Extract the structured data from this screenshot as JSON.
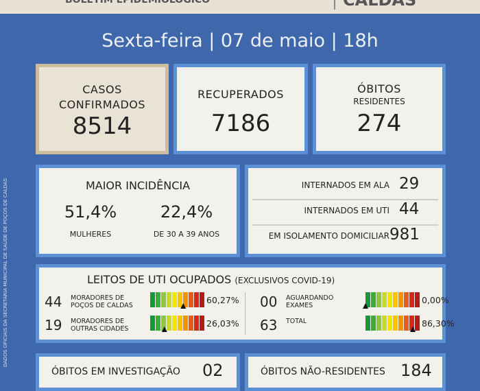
{
  "header": {
    "subtitle": "BOLETIM EPIDEMIOLÓGICO",
    "brand": "CALDAS"
  },
  "date_line": "Sexta-feira | 07 de maio | 18h",
  "cards": [
    {
      "label": "CASOS CONFIRMADOS",
      "value": "8514"
    },
    {
      "label": "RECUPERADOS",
      "value": "7186"
    },
    {
      "label": "ÓBITOS",
      "sublabel": "RESIDENTES",
      "value": "274"
    }
  ],
  "incidence": {
    "title": "MAIOR INCIDÊNCIA",
    "items": [
      {
        "value": "51,4%",
        "label": "MULHERES"
      },
      {
        "value": "22,4%",
        "label": "DE 30 A 39 ANOS"
      }
    ]
  },
  "status": [
    {
      "label": "INTERNADOS EM ALA",
      "value": "29"
    },
    {
      "label": "INTERNADOS EM UTI",
      "value": "44"
    },
    {
      "label": "EM ISOLAMENTO DOMICILIAR",
      "value": "981"
    }
  ],
  "icu": {
    "title": "LEITOS DE UTI OCUPADOS",
    "note": "(EXCLUSIVOS COVID-19)",
    "gauge_lim": [
      0,
      100
    ],
    "rows": [
      {
        "count": "44",
        "label": "MORADORES DE POÇOS DE CALDAS",
        "percent": {
          "value": 60.27,
          "label": "60,27%"
        }
      },
      {
        "count": "19",
        "label": "MORADORES DE OUTRAS CIDADES",
        "percent": {
          "value": 26.03,
          "label": "26,03%"
        }
      },
      {
        "count": "00",
        "label": "AGUARDANDO EXAMES",
        "percent": {
          "value": 0,
          "label": "0,00%"
        }
      },
      {
        "count": "63",
        "label": "TOTAL",
        "percent": {
          "value": 86.3,
          "label": "86,30%"
        }
      }
    ]
  },
  "footer": [
    {
      "label": "ÓBITOS EM INVESTIGAÇÃO",
      "value": "02"
    },
    {
      "label": "ÓBITOS NÃO-RESIDENTES",
      "value": "184"
    }
  ],
  "side_note": "DADOS OFICIAIS DA SECRETARIA MUNICIPAL DE SAÚDE DE POÇOS DE CALDAS"
}
